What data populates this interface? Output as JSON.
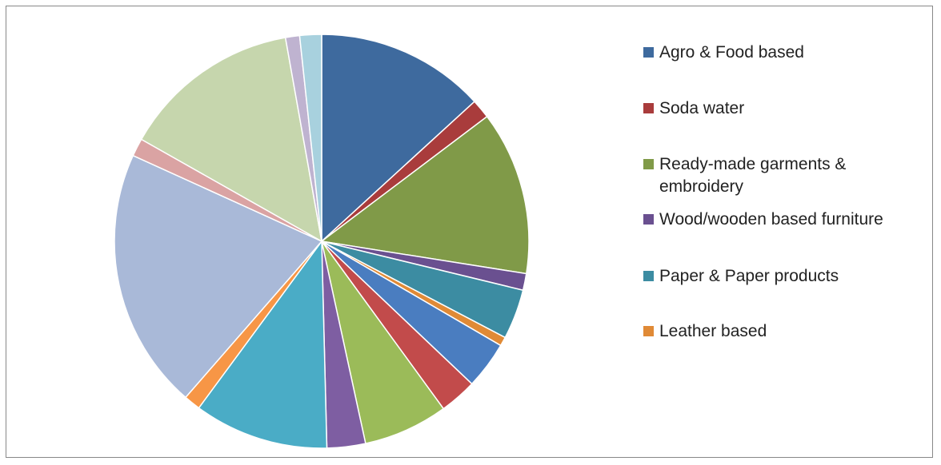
{
  "chart_data": {
    "type": "pie",
    "title": "",
    "slices": [
      {
        "value": 13.2,
        "color": "#3E6A9E"
      },
      {
        "value": 1.5,
        "color": "#A93C3C"
      },
      {
        "value": 12.8,
        "color": "#809A48"
      },
      {
        "value": 1.3,
        "color": "#6A5090"
      },
      {
        "value": 3.9,
        "color": "#3C8CA2"
      },
      {
        "value": 0.7,
        "color": "#E08A36"
      },
      {
        "value": 3.7,
        "color": "#4A7DC0"
      },
      {
        "value": 2.9,
        "color": "#C24B4B"
      },
      {
        "value": 6.6,
        "color": "#9BBB59"
      },
      {
        "value": 3.0,
        "color": "#7E5EA2"
      },
      {
        "value": 10.5,
        "color": "#4AACC6"
      },
      {
        "value": 1.3,
        "color": "#F79646"
      },
      {
        "value": 20.4,
        "color": "#A9B9D8"
      },
      {
        "value": 1.4,
        "color": "#DAA3A3"
      },
      {
        "value": 14.0,
        "color": "#C6D6AD"
      },
      {
        "value": 1.1,
        "color": "#BFB3D0"
      },
      {
        "value": 1.7,
        "color": "#A8D1DE"
      }
    ],
    "legend": {
      "placement": "right",
      "entries": [
        {
          "label": "Agro & Food based",
          "color": "#3E6A9E"
        },
        {
          "label": "Soda water",
          "color": "#A93C3C"
        },
        {
          "label": "Ready-made garments & embroidery",
          "color": "#809A48"
        },
        {
          "label": "Wood/wooden based furniture",
          "color": "#6A5090"
        },
        {
          "label": "Paper & Paper products",
          "color": "#3C8CA2"
        },
        {
          "label": "Leather based",
          "color": "#E08A36"
        }
      ]
    }
  }
}
